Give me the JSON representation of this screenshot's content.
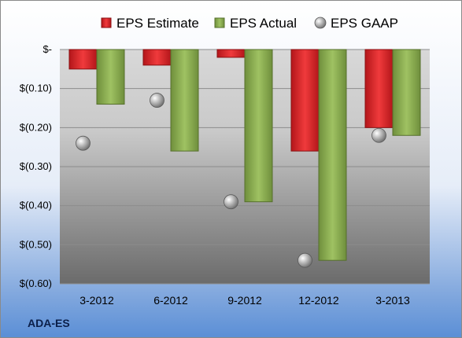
{
  "chart_data": {
    "type": "bar",
    "categories": [
      "3-2012",
      "6-2012",
      "9-2012",
      "12-2012",
      "3-2013"
    ],
    "series": [
      {
        "name": "EPS Estimate",
        "kind": "bar",
        "color": "#e0262a",
        "values": [
          -0.05,
          -0.04,
          -0.02,
          -0.26,
          -0.2
        ]
      },
      {
        "name": "EPS Actual",
        "kind": "bar",
        "color": "#8fb356",
        "values": [
          -0.14,
          -0.26,
          -0.39,
          -0.54,
          -0.22
        ]
      },
      {
        "name": "EPS GAAP",
        "kind": "point",
        "color": "#b8b8b8",
        "values": [
          -0.24,
          -0.13,
          -0.39,
          -0.54,
          -0.22
        ]
      }
    ],
    "y_ticks": [
      0,
      -0.1,
      -0.2,
      -0.3,
      -0.4,
      -0.5,
      -0.6
    ],
    "y_tick_labels": [
      "$-",
      "$(0.10)",
      "$(0.20)",
      "$(0.30)",
      "$(0.40)",
      "$(0.50)",
      "$(0.60)"
    ],
    "ylim": [
      -0.6,
      0
    ],
    "grid": true,
    "legend_position": "top"
  },
  "ticker": "ADA-ES"
}
